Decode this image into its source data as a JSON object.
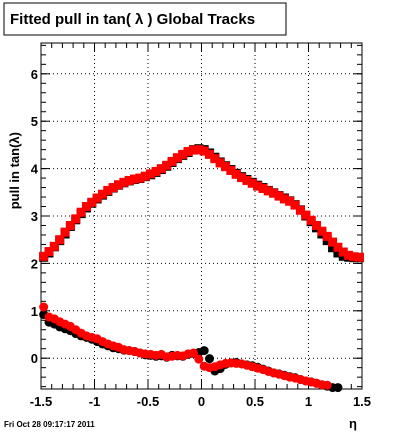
{
  "chart_data": {
    "type": "scatter",
    "title": "Fitted pull in tan( λ )  Global Tracks",
    "xlabel": "η",
    "ylabel": "pull in tan(λ)",
    "xlim": [
      -1.5,
      1.5
    ],
    "ylim": [
      -0.65,
      6.65
    ],
    "x_ticks": [
      -1.5,
      -1,
      -0.5,
      0,
      0.5,
      1,
      1.5
    ],
    "x_tick_labels": [
      "-1.5",
      "-1",
      "-0.5",
      "0",
      "0.5",
      "1",
      "1.5"
    ],
    "y_ticks": [
      0,
      1,
      2,
      3,
      4,
      5,
      6
    ],
    "y_tick_labels": [
      "0",
      "1",
      "2",
      "3",
      "4",
      "5",
      "6"
    ],
    "grid": true,
    "footer": "Fri Oct 28 09:17:17 2011",
    "series": [
      {
        "marker": "square",
        "color": "#000000",
        "kind": "width",
        "x": [
          -1.475,
          -1.425,
          -1.375,
          -1.325,
          -1.275,
          -1.225,
          -1.175,
          -1.125,
          -1.075,
          -1.025,
          -0.975,
          -0.925,
          -0.875,
          -0.825,
          -0.775,
          -0.725,
          -0.675,
          -0.625,
          -0.575,
          -0.525,
          -0.475,
          -0.425,
          -0.375,
          -0.325,
          -0.275,
          -0.225,
          -0.175,
          -0.125,
          -0.075,
          -0.025,
          0.025,
          0.075,
          0.125,
          0.175,
          0.225,
          0.275,
          0.325,
          0.375,
          0.425,
          0.475,
          0.525,
          0.575,
          0.625,
          0.675,
          0.725,
          0.775,
          0.825,
          0.875,
          0.925,
          0.975,
          1.025,
          1.075,
          1.125,
          1.175,
          1.225,
          1.275,
          1.325,
          1.375,
          1.425,
          1.475
        ],
        "y": [
          2.13,
          2.22,
          2.35,
          2.48,
          2.62,
          2.78,
          2.92,
          3.05,
          3.17,
          3.27,
          3.36,
          3.44,
          3.52,
          3.59,
          3.65,
          3.7,
          3.74,
          3.77,
          3.79,
          3.83,
          3.87,
          3.92,
          3.98,
          4.05,
          4.13,
          4.21,
          4.28,
          4.34,
          4.4,
          4.42,
          4.4,
          4.33,
          4.24,
          4.14,
          4.06,
          3.98,
          3.9,
          3.83,
          3.77,
          3.71,
          3.65,
          3.6,
          3.54,
          3.49,
          3.43,
          3.38,
          3.32,
          3.24,
          3.13,
          3.0,
          2.88,
          2.75,
          2.62,
          2.48,
          2.33,
          2.22,
          2.15,
          2.13,
          2.12,
          2.12
        ]
      },
      {
        "marker": "square",
        "color": "#ff0000",
        "kind": "width",
        "x": [
          -1.475,
          -1.425,
          -1.375,
          -1.325,
          -1.275,
          -1.225,
          -1.175,
          -1.125,
          -1.075,
          -1.025,
          -0.975,
          -0.925,
          -0.875,
          -0.825,
          -0.775,
          -0.725,
          -0.675,
          -0.625,
          -0.575,
          -0.525,
          -0.475,
          -0.425,
          -0.375,
          -0.325,
          -0.275,
          -0.225,
          -0.175,
          -0.125,
          -0.075,
          -0.025,
          0.025,
          0.075,
          0.125,
          0.175,
          0.225,
          0.275,
          0.325,
          0.375,
          0.425,
          0.475,
          0.525,
          0.575,
          0.625,
          0.675,
          0.725,
          0.775,
          0.825,
          0.875,
          0.925,
          0.975,
          1.025,
          1.075,
          1.125,
          1.175,
          1.225,
          1.275,
          1.325,
          1.375,
          1.425,
          1.475
        ],
        "y": [
          2.15,
          2.25,
          2.36,
          2.5,
          2.66,
          2.8,
          2.94,
          3.08,
          3.2,
          3.29,
          3.38,
          3.46,
          3.54,
          3.6,
          3.66,
          3.71,
          3.75,
          3.78,
          3.8,
          3.84,
          3.89,
          3.94,
          4.0,
          4.07,
          4.15,
          4.23,
          4.3,
          4.36,
          4.39,
          4.4,
          4.37,
          4.3,
          4.21,
          4.12,
          4.04,
          3.96,
          3.88,
          3.81,
          3.75,
          3.69,
          3.63,
          3.58,
          3.53,
          3.48,
          3.42,
          3.36,
          3.31,
          3.23,
          3.12,
          3.02,
          2.91,
          2.8,
          2.68,
          2.57,
          2.45,
          2.34,
          2.24,
          2.17,
          2.14,
          2.13
        ]
      },
      {
        "marker": "circle",
        "color": "#000000",
        "kind": "mean",
        "x": [
          -1.475,
          -1.425,
          -1.375,
          -1.325,
          -1.275,
          -1.225,
          -1.175,
          -1.125,
          -1.075,
          -1.025,
          -0.975,
          -0.925,
          -0.875,
          -0.825,
          -0.775,
          -0.725,
          -0.675,
          -0.625,
          -0.575,
          -0.525,
          -0.475,
          -0.425,
          -0.375,
          -0.325,
          -0.275,
          -0.225,
          -0.175,
          -0.125,
          -0.075,
          -0.025,
          0.025,
          0.075,
          0.125,
          0.175,
          0.225,
          0.275,
          0.325,
          0.375,
          0.425,
          0.475,
          0.525,
          0.575,
          0.625,
          0.675,
          0.725,
          0.775,
          0.825,
          0.875,
          0.925,
          0.975,
          1.025,
          1.075,
          1.125,
          1.175,
          1.225,
          1.275
        ],
        "y": [
          0.92,
          0.76,
          0.72,
          0.66,
          0.62,
          0.58,
          0.52,
          0.47,
          0.44,
          0.4,
          0.35,
          0.3,
          0.26,
          0.22,
          0.2,
          0.17,
          0.16,
          0.14,
          0.11,
          0.07,
          0.06,
          0.04,
          0.05,
          0.02,
          0.06,
          0.05,
          0.04,
          0.08,
          0.1,
          0.12,
          0.16,
          -0.01,
          -0.27,
          -0.22,
          -0.13,
          -0.1,
          -0.09,
          -0.12,
          -0.14,
          -0.16,
          -0.19,
          -0.23,
          -0.27,
          -0.31,
          -0.33,
          -0.36,
          -0.39,
          -0.41,
          -0.45,
          -0.48,
          -0.5,
          -0.53,
          -0.56,
          -0.59,
          -0.62,
          -0.62
        ]
      },
      {
        "marker": "circle",
        "color": "#ff0000",
        "kind": "mean",
        "x": [
          -1.475,
          -1.425,
          -1.375,
          -1.325,
          -1.275,
          -1.225,
          -1.175,
          -1.125,
          -1.075,
          -1.025,
          -0.975,
          -0.925,
          -0.875,
          -0.825,
          -0.775,
          -0.725,
          -0.675,
          -0.625,
          -0.575,
          -0.525,
          -0.475,
          -0.425,
          -0.375,
          -0.325,
          -0.275,
          -0.225,
          -0.175,
          -0.125,
          -0.075,
          -0.025,
          0.025,
          0.075,
          0.125,
          0.175,
          0.225,
          0.275,
          0.325,
          0.375,
          0.425,
          0.475,
          0.525,
          0.575,
          0.625,
          0.675,
          0.725,
          0.775,
          0.825,
          0.875,
          0.925,
          0.975,
          1.025,
          1.075,
          1.125,
          1.175
        ],
        "y": [
          1.08,
          0.87,
          0.83,
          0.77,
          0.72,
          0.67,
          0.6,
          0.53,
          0.47,
          0.44,
          0.41,
          0.35,
          0.3,
          0.26,
          0.23,
          0.18,
          0.16,
          0.14,
          0.11,
          0.09,
          0.08,
          0.06,
          0.08,
          0.03,
          0.04,
          0.06,
          0.05,
          0.09,
          0.11,
          -0.02,
          -0.17,
          -0.2,
          -0.18,
          -0.14,
          -0.11,
          -0.1,
          -0.11,
          -0.12,
          -0.15,
          -0.18,
          -0.21,
          -0.24,
          -0.28,
          -0.31,
          -0.34,
          -0.37,
          -0.4,
          -0.42,
          -0.45,
          -0.48,
          -0.5,
          -0.53,
          -0.56,
          -0.57
        ]
      }
    ]
  }
}
